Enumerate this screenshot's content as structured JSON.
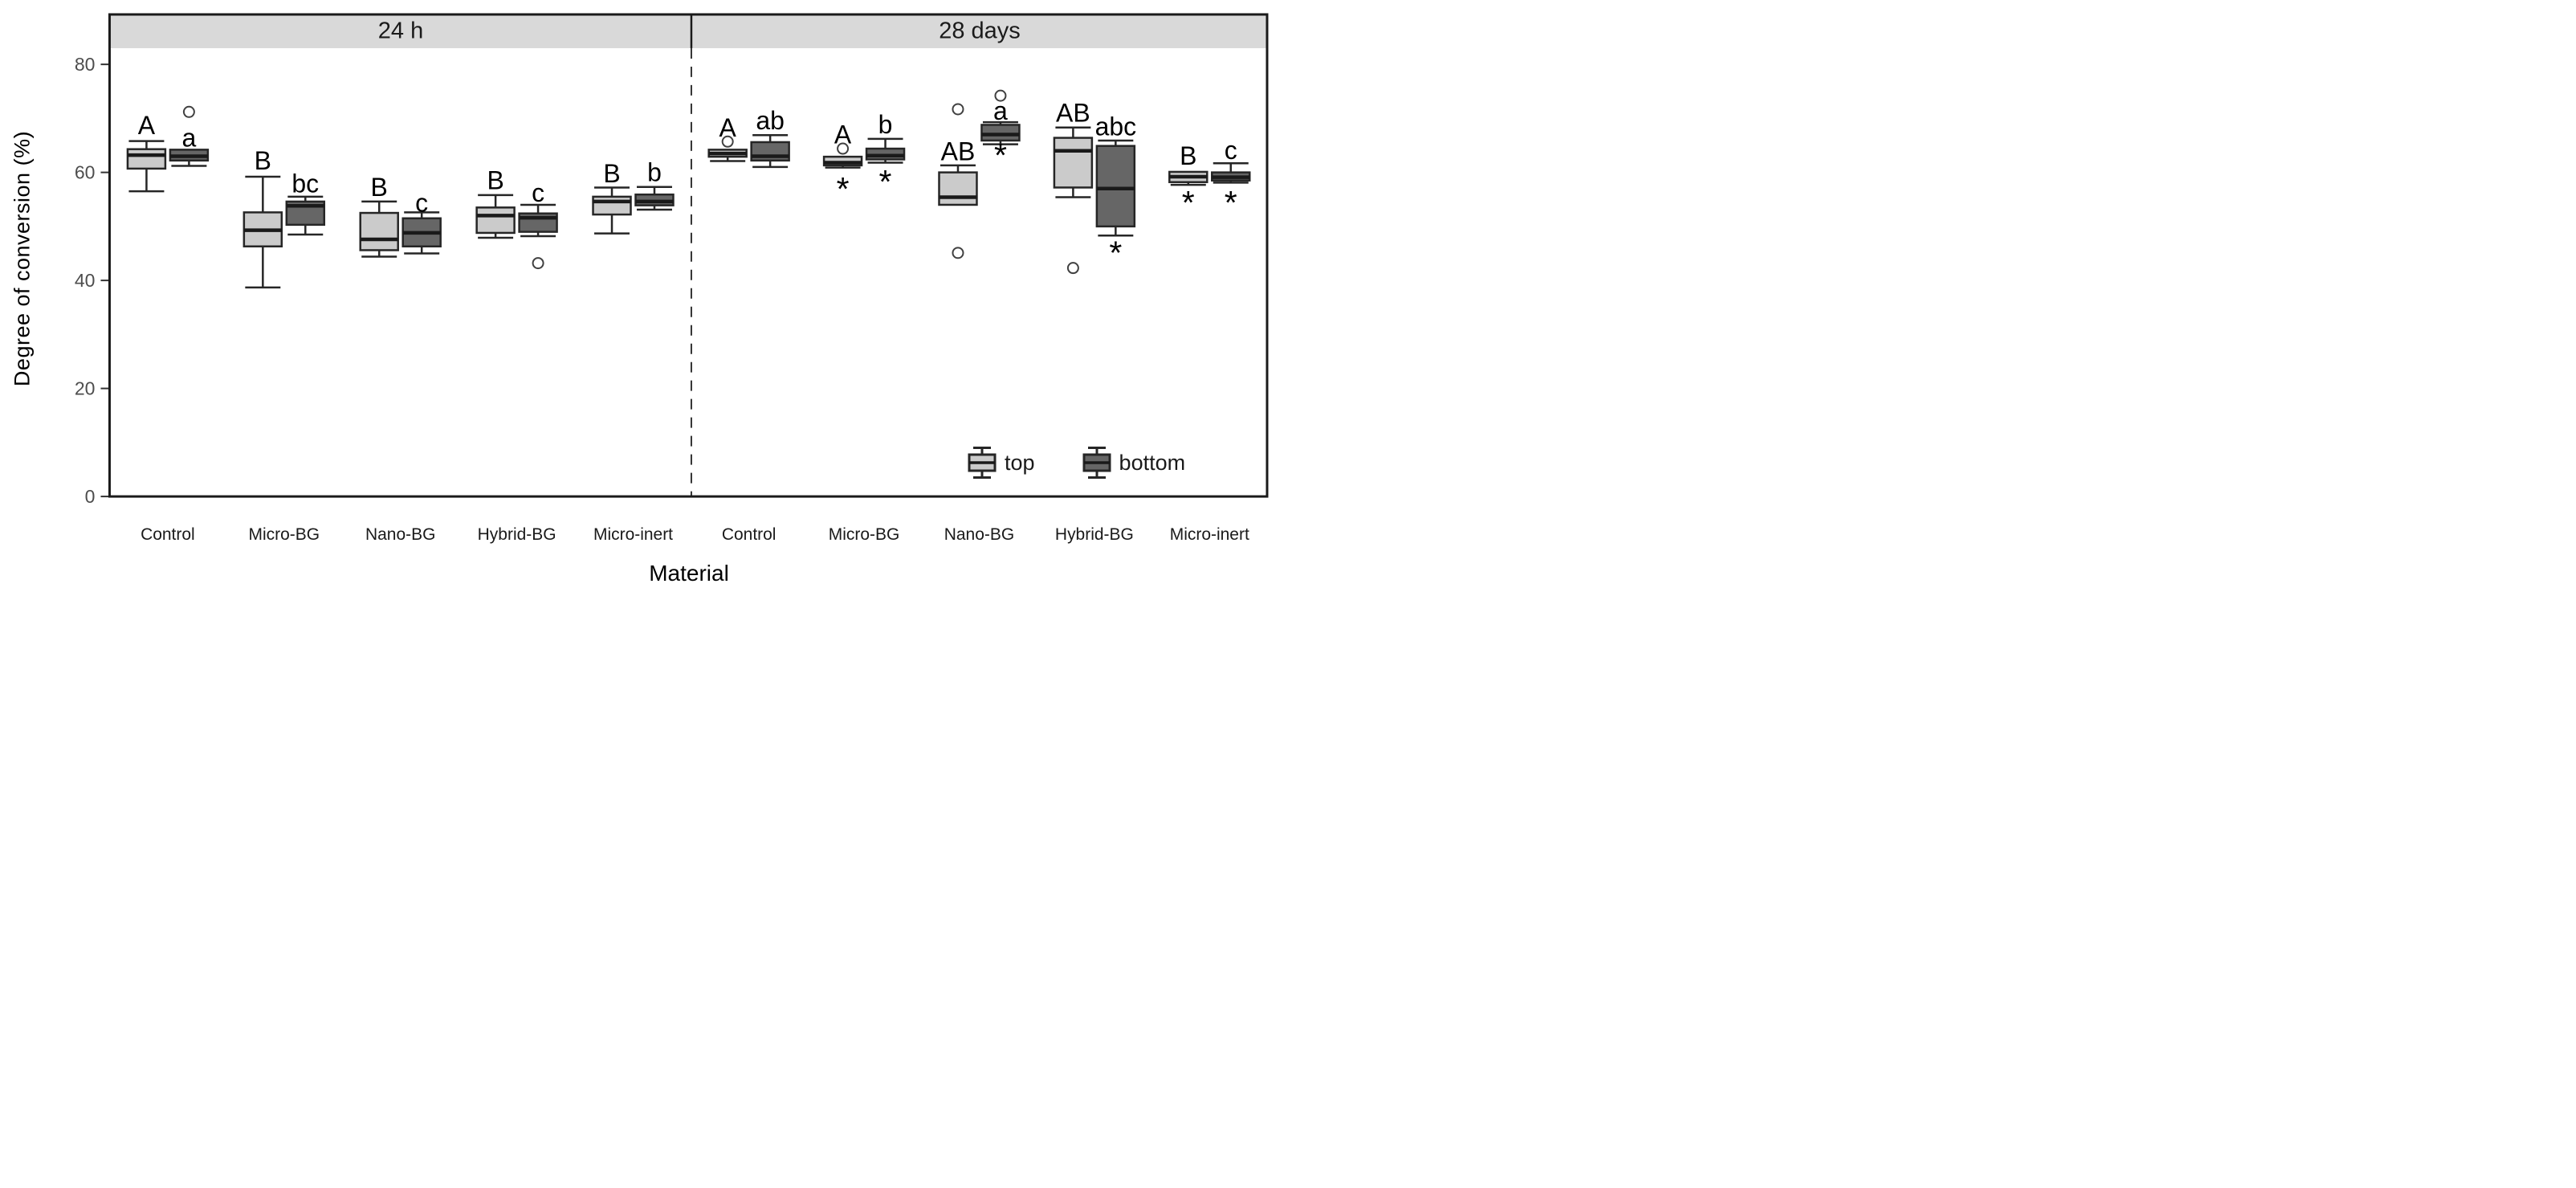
{
  "chart_data": {
    "type": "boxplot",
    "title": "",
    "ylabel": "Degree of conversion (%)",
    "xlabel": "Material",
    "ylim": [
      0,
      83
    ],
    "yticks": [
      0,
      20,
      40,
      60,
      80
    ],
    "grid": false,
    "categories": [
      "Control",
      "Micro-BG",
      "Nano-BG",
      "Hybrid-BG",
      "Micro-inert"
    ],
    "series": [
      "top",
      "bottom"
    ],
    "series_colors": {
      "top": "#cbcbcb",
      "bottom": "#666666"
    },
    "stroke_color": "#262626",
    "strip_background": "#d9d9d9",
    "legend": {
      "position": "bottom-right-inside",
      "items": [
        {
          "label": "top"
        },
        {
          "label": "bottom"
        }
      ]
    },
    "facets": [
      {
        "label": "24 h",
        "groups": [
          {
            "category": "Control",
            "boxes": [
              {
                "series": "top",
                "whislo": 56.5,
                "q1": 60.7,
                "med": 63.2,
                "q3": 64.3,
                "whishi": 65.8,
                "outliers": [],
                "letter": "A",
                "letter_y": 68.7,
                "asterisk_y": null
              },
              {
                "series": "bottom",
                "whislo": 61.2,
                "q1": 62.2,
                "med": 63.0,
                "q3": 64.2,
                "whishi": null,
                "outliers": [
                  71.2
                ],
                "letter": "a",
                "letter_y": 66.4,
                "asterisk_y": null
              }
            ]
          },
          {
            "category": "Micro-BG",
            "boxes": [
              {
                "series": "top",
                "whislo": 38.7,
                "q1": 46.3,
                "med": 49.3,
                "q3": 52.6,
                "whishi": 59.2,
                "outliers": [],
                "letter": "B",
                "letter_y": 62.2,
                "asterisk_y": null
              },
              {
                "series": "bottom",
                "whislo": 48.5,
                "q1": 50.3,
                "med": 53.8,
                "q3": 54.6,
                "whishi": 55.5,
                "outliers": [],
                "letter": "bc",
                "letter_y": 57.9,
                "asterisk_y": null
              }
            ]
          },
          {
            "category": "Nano-BG",
            "boxes": [
              {
                "series": "top",
                "whislo": 44.4,
                "q1": 45.6,
                "med": 47.6,
                "q3": 52.5,
                "whishi": 54.6,
                "outliers": [],
                "letter": "B",
                "letter_y": 57.3,
                "asterisk_y": null
              },
              {
                "series": "bottom",
                "whislo": 45.0,
                "q1": 46.3,
                "med": 48.8,
                "q3": 51.5,
                "whishi": 52.6,
                "outliers": [],
                "letter": "c",
                "letter_y": 54.4,
                "asterisk_y": null
              }
            ]
          },
          {
            "category": "Hybrid-BG",
            "boxes": [
              {
                "series": "top",
                "whislo": 47.9,
                "q1": 48.8,
                "med": 52.0,
                "q3": 53.5,
                "whishi": 55.8,
                "outliers": [],
                "letter": "B",
                "letter_y": 58.5,
                "asterisk_y": null
              },
              {
                "series": "bottom",
                "whislo": 48.2,
                "q1": 49.0,
                "med": 51.6,
                "q3": 52.4,
                "whishi": 54.0,
                "outliers": [
                  43.2
                ],
                "letter": "c",
                "letter_y": 56.2,
                "asterisk_y": null
              }
            ]
          },
          {
            "category": "Micro-inert",
            "boxes": [
              {
                "series": "top",
                "whislo": 48.7,
                "q1": 52.2,
                "med": 54.6,
                "q3": 55.5,
                "whishi": 57.2,
                "outliers": [],
                "letter": "B",
                "letter_y": 59.8,
                "asterisk_y": null
              },
              {
                "series": "bottom",
                "whislo": 53.1,
                "q1": 53.9,
                "med": 54.6,
                "q3": 55.9,
                "whishi": 57.3,
                "outliers": [],
                "letter": "b",
                "letter_y": 60.0,
                "asterisk_y": null
              }
            ]
          }
        ]
      },
      {
        "label": "28 days",
        "groups": [
          {
            "category": "Control",
            "boxes": [
              {
                "series": "top",
                "whislo": 62.1,
                "q1": 62.9,
                "med": 63.5,
                "q3": 64.2,
                "whishi": null,
                "outliers": [
                  65.7
                ],
                "letter": "A",
                "letter_y": 68.3,
                "asterisk_y": null
              },
              {
                "series": "bottom",
                "whislo": 61.0,
                "q1": 62.2,
                "med": 63.0,
                "q3": 65.6,
                "whishi": 66.9,
                "outliers": [],
                "letter": "ab",
                "letter_y": 69.6,
                "asterisk_y": null
              }
            ]
          },
          {
            "category": "Micro-BG",
            "boxes": [
              {
                "series": "top",
                "whislo": 60.9,
                "q1": 61.3,
                "med": 61.8,
                "q3": 62.9,
                "whishi": null,
                "outliers": [
                  64.4
                ],
                "letter": "A",
                "letter_y": 67.0,
                "asterisk_y": 57.9
              },
              {
                "series": "bottom",
                "whislo": 61.8,
                "q1": 62.4,
                "med": 63.1,
                "q3": 64.4,
                "whishi": 66.2,
                "outliers": [],
                "letter": "b",
                "letter_y": 68.9,
                "asterisk_y": 59.3
              }
            ]
          },
          {
            "category": "Nano-BG",
            "boxes": [
              {
                "series": "top",
                "whislo": null,
                "q1": 54.0,
                "med": 55.4,
                "q3": 60.0,
                "whishi": 61.3,
                "outliers": [
                  71.7,
                  45.1
                ],
                "letter": "AB",
                "letter_y": 63.9,
                "asterisk_y": null
              },
              {
                "series": "bottom",
                "whislo": 65.2,
                "q1": 65.9,
                "med": 67.0,
                "q3": 68.8,
                "whishi": 69.3,
                "outliers": [
                  74.2
                ],
                "letter": "a",
                "letter_y": 71.4,
                "asterisk_y": 64.2
              }
            ]
          },
          {
            "category": "Hybrid-BG",
            "boxes": [
              {
                "series": "top",
                "whislo": 55.4,
                "q1": 57.2,
                "med": 64.0,
                "q3": 66.4,
                "whishi": 68.3,
                "outliers": [
                  42.3
                ],
                "letter": "AB",
                "letter_y": 71.0,
                "asterisk_y": null
              },
              {
                "series": "bottom",
                "whislo": 48.3,
                "q1": 50.0,
                "med": 57.0,
                "q3": 64.9,
                "whishi": 65.9,
                "outliers": [],
                "letter": "abc",
                "letter_y": 68.5,
                "asterisk_y": 46.1
              }
            ]
          },
          {
            "category": "Micro-inert",
            "boxes": [
              {
                "series": "top",
                "whislo": 57.7,
                "q1": 58.2,
                "med": 59.2,
                "q3": 60.1,
                "whishi": null,
                "outliers": [],
                "letter": "B",
                "letter_y": 63.1,
                "asterisk_y": 55.4
              },
              {
                "series": "bottom",
                "whislo": 58.1,
                "q1": 58.5,
                "med": 59.1,
                "q3": 60.0,
                "whishi": 61.7,
                "outliers": [],
                "letter": "c",
                "letter_y": 64.1,
                "asterisk_y": 55.4
              }
            ]
          }
        ]
      }
    ]
  }
}
